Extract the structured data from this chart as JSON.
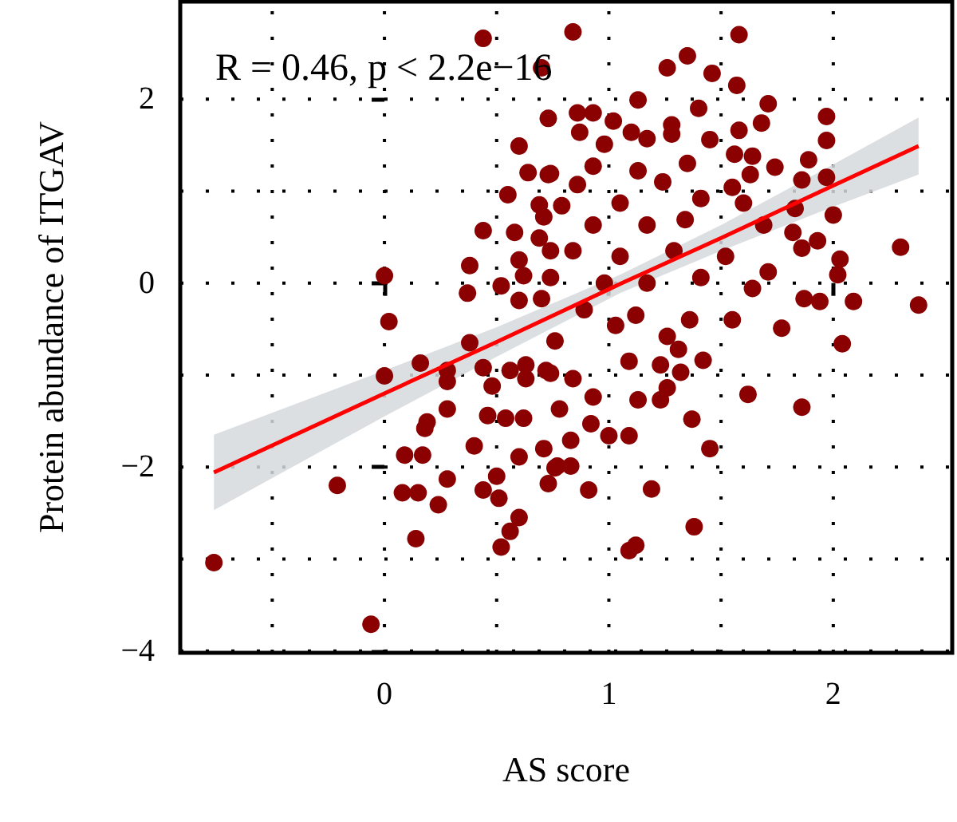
{
  "chart_data": {
    "type": "scatter",
    "xlabel": "AS score",
    "ylabel": "Protein abundance of ITGAV",
    "annotations": [
      "R = 0.46, p < 2.2e−16"
    ],
    "xlim": [
      -0.91,
      2.53
    ],
    "ylim": [
      -4.02,
      3.06
    ],
    "xticks": [
      {
        "value": -0.5,
        "label": null
      },
      0,
      {
        "value": 0.5,
        "label": null
      },
      1,
      {
        "value": 1.5,
        "label": null
      },
      2
    ],
    "yticks": [
      {
        "value": -4,
        "label": "−4"
      },
      {
        "value": -3,
        "label": null
      },
      {
        "value": -2,
        "label": "−2"
      },
      {
        "value": -1,
        "label": null
      },
      0,
      {
        "value": 1,
        "label": null
      },
      2
    ],
    "grid": true,
    "series": [
      {
        "color": "#8b0000",
        "x": [
          0.44,
          0.7,
          0.73,
          0.6,
          0.64,
          0.73,
          0.55,
          0.69,
          0.44,
          0.58,
          0.69,
          0.6,
          0.38,
          0.0,
          0.37,
          0.52,
          0.62,
          0.6,
          0.02,
          0.38,
          0.7,
          0.74,
          0.84,
          1.58,
          1.35,
          1.26,
          1.46,
          1.57,
          1.13,
          1.4,
          1.71,
          0.86,
          0.93,
          1.02,
          1.28,
          1.58,
          1.68,
          1.97,
          1.97,
          1.45,
          0.87,
          1.1,
          1.17,
          1.28,
          0.98,
          1.56,
          1.64,
          1.89,
          1.74,
          0.74,
          0.93,
          1.13,
          1.35,
          1.63,
          1.97,
          1.86,
          0.86,
          1.24,
          1.55,
          1.05,
          0.79,
          1.41,
          1.6,
          2.0,
          1.83,
          0.71,
          0.93,
          1.17,
          1.34,
          1.69,
          2.3,
          1.82,
          1.93,
          1.86,
          0.84,
          1.05,
          1.29,
          1.52,
          2.03,
          1.71,
          2.02,
          1.64,
          1.87,
          1.94,
          2.09,
          2.38,
          0.74,
          0.98,
          1.17,
          1.41,
          0.89,
          1.12,
          1.36,
          1.55,
          1.77,
          2.04,
          1.03,
          1.26,
          0.16,
          0.0,
          0.28,
          0.28,
          0.44,
          0.56,
          0.63,
          0.48,
          0.63,
          0.72,
          0.28,
          0.46,
          0.54,
          0.62,
          0.19,
          0.18,
          0.4,
          0.71,
          0.09,
          0.17,
          0.6,
          0.76,
          0.28,
          -0.21,
          0.08,
          0.15,
          0.44,
          0.5,
          0.51,
          0.73,
          0.24,
          0.6,
          0.56,
          0.14,
          0.52,
          -0.76,
          -0.06,
          0.76,
          1.09,
          1.23,
          1.31,
          1.42,
          1.32,
          0.74,
          0.84,
          0.93,
          1.13,
          1.23,
          1.26,
          1.62,
          1.86,
          0.78,
          1.37,
          0.92,
          1.0,
          1.09,
          0.83,
          1.45,
          0.77,
          0.83,
          0.91,
          1.19,
          1.38,
          1.09,
          1.12
        ],
        "values": [
          2.66,
          2.34,
          1.79,
          1.49,
          1.2,
          1.18,
          0.96,
          0.85,
          0.57,
          0.55,
          0.49,
          0.25,
          0.19,
          0.08,
          -0.11,
          -0.03,
          0.08,
          -0.19,
          -0.42,
          -0.65,
          -0.17,
          0.35,
          2.73,
          2.7,
          2.47,
          2.34,
          2.28,
          2.15,
          1.99,
          1.9,
          1.95,
          1.85,
          1.85,
          1.76,
          1.72,
          1.66,
          1.74,
          1.81,
          1.55,
          1.56,
          1.64,
          1.64,
          1.57,
          1.62,
          1.51,
          1.4,
          1.38,
          1.34,
          1.26,
          1.19,
          1.27,
          1.22,
          1.3,
          1.18,
          1.15,
          1.12,
          1.07,
          1.1,
          1.04,
          0.87,
          0.84,
          0.92,
          0.87,
          0.74,
          0.81,
          0.72,
          0.63,
          0.63,
          0.69,
          0.63,
          0.39,
          0.55,
          0.46,
          0.38,
          0.35,
          0.29,
          0.35,
          0.29,
          0.26,
          0.12,
          0.09,
          -0.06,
          -0.17,
          -0.2,
          -0.2,
          -0.24,
          0.06,
          0.0,
          0.0,
          0.06,
          -0.29,
          -0.35,
          -0.4,
          -0.4,
          -0.49,
          -0.66,
          -0.46,
          -0.58,
          -0.87,
          -1.01,
          -0.95,
          -1.07,
          -0.92,
          -0.95,
          -0.89,
          -1.12,
          -1.04,
          -0.95,
          -1.37,
          -1.44,
          -1.47,
          -1.47,
          -1.51,
          -1.58,
          -1.77,
          -1.8,
          -1.87,
          -1.87,
          -1.89,
          -2.01,
          -2.13,
          -2.2,
          -2.28,
          -2.28,
          -2.25,
          -2.1,
          -2.34,
          -2.18,
          -2.41,
          -2.55,
          -2.7,
          -2.78,
          -2.87,
          -3.04,
          -3.71,
          -0.63,
          -0.85,
          -0.89,
          -0.72,
          -0.84,
          -0.97,
          -0.98,
          -1.04,
          -1.24,
          -1.27,
          -1.27,
          -1.14,
          -1.21,
          -1.35,
          -1.37,
          -1.48,
          -1.53,
          -1.66,
          -1.66,
          -1.71,
          -1.8,
          -1.99,
          -1.99,
          -2.25,
          -2.24,
          -2.65,
          -2.91,
          -2.85
        ]
      },
      {
        "type": "line",
        "color": "#ff0000",
        "x": [
          -0.76,
          0,
          0.5,
          1.05,
          1.5,
          2,
          2.38
        ],
        "values": [
          -2.06,
          -1.2,
          -0.64,
          -0.01,
          0.49,
          1.06,
          1.49
        ],
        "lower": [
          -2.47,
          -1.45,
          -0.8,
          -0.11,
          0.35,
          0.83,
          1.18
        ],
        "upper": [
          -1.65,
          -0.95,
          -0.48,
          0.09,
          0.63,
          1.29,
          1.8
        ]
      }
    ]
  }
}
